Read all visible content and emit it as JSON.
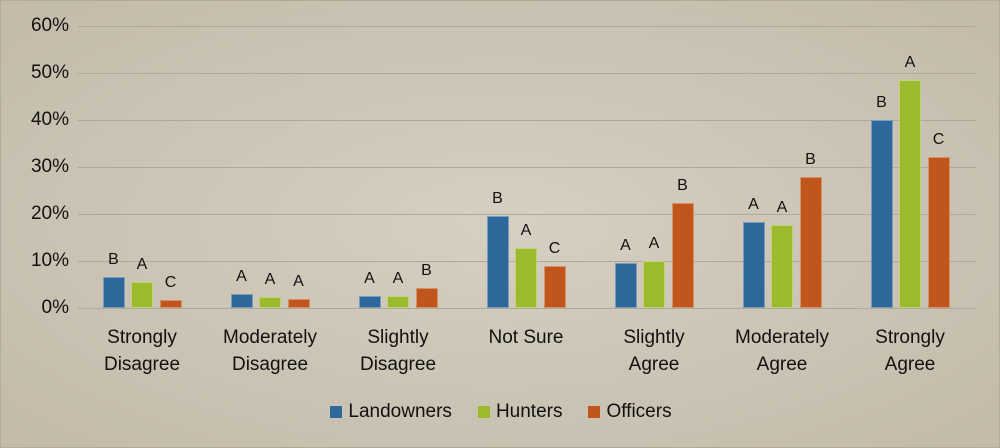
{
  "chart_data": {
    "type": "bar",
    "title": "",
    "xlabel": "",
    "ylabel": "",
    "ylim": [
      0,
      60
    ],
    "yticks": [
      "0%",
      "10%",
      "20%",
      "30%",
      "40%",
      "50%",
      "60%"
    ],
    "grid": true,
    "legend_position": "bottom",
    "categories": [
      [
        "Strongly",
        "Disagree"
      ],
      [
        "Moderately",
        "Disagree"
      ],
      [
        "Slightly",
        "Disagree"
      ],
      [
        "Not Sure",
        ""
      ],
      [
        "Slightly",
        "Agree"
      ],
      [
        "Moderately",
        "Agree"
      ],
      [
        "Strongly",
        "Agree"
      ]
    ],
    "series": [
      {
        "name": "Landowners",
        "color": "#2e6799",
        "values": [
          6.6,
          3.0,
          2.6,
          19.5,
          9.5,
          18.2,
          40.1
        ],
        "labels": [
          "B",
          "A",
          "A",
          "B",
          "A",
          "A",
          "B"
        ]
      },
      {
        "name": "Hunters",
        "color": "#9cba2e",
        "values": [
          5.5,
          2.4,
          2.6,
          12.8,
          9.9,
          17.7,
          48.6
        ],
        "labels": [
          "A",
          "A",
          "A",
          "A",
          "A",
          "A",
          "A"
        ]
      },
      {
        "name": "Officers",
        "color": "#c0561c",
        "values": [
          1.6,
          2.0,
          4.3,
          9.0,
          22.3,
          27.9,
          32.1
        ],
        "labels": [
          "C",
          "A",
          "B",
          "C",
          "B",
          "B",
          "C"
        ]
      }
    ]
  },
  "legend": [
    {
      "label": "Landowners",
      "color": "#2e6799"
    },
    {
      "label": "Hunters",
      "color": "#9cba2e"
    },
    {
      "label": "Officers",
      "color": "#c0561c"
    }
  ]
}
